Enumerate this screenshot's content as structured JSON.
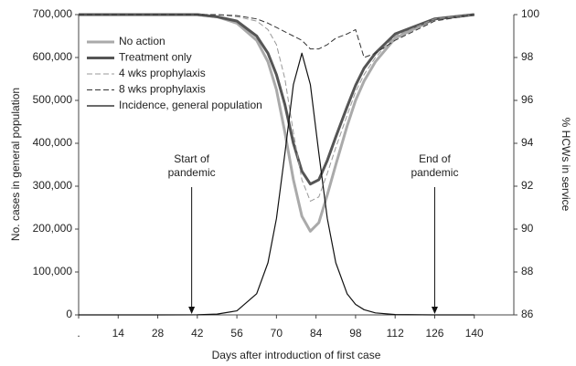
{
  "chart_data": {
    "type": "line",
    "x_label": "Days after introduction of first case",
    "y_label": "No. cases in general population",
    "y2_label": "% HCWs in service",
    "x": [
      0,
      14,
      28,
      42,
      49,
      56,
      63,
      67,
      70,
      73,
      76,
      79,
      82,
      85,
      88,
      91,
      95,
      98,
      101,
      105,
      112,
      126,
      140
    ],
    "xlim": [
      0,
      154
    ],
    "xticks": [
      {
        "value": 0,
        "label": "."
      },
      14,
      28,
      42,
      56,
      70,
      84,
      98,
      112,
      126,
      140
    ],
    "ylim": [
      0,
      700000
    ],
    "yticks": [
      0,
      {
        "value": 100000,
        "label": "100,000"
      },
      {
        "value": 200000,
        "label": "200,000"
      },
      {
        "value": 300000,
        "label": "300,000"
      },
      {
        "value": 400000,
        "label": "400,000"
      },
      {
        "value": 500000,
        "label": "500,000"
      },
      {
        "value": 600000,
        "label": "600,000"
      },
      {
        "value": 700000,
        "label": "700,000"
      }
    ],
    "y2lim": [
      86,
      100
    ],
    "y2ticks": [
      86,
      88,
      90,
      92,
      94,
      96,
      98,
      100
    ],
    "legend": "upper left",
    "series": [
      {
        "name": "No action",
        "color": "#aaaaaa",
        "line_width": 3,
        "dashed": false,
        "axis": "y2",
        "values": [
          100,
          100,
          100,
          100,
          99.9,
          99.6,
          98.8,
          97.8,
          96.5,
          94.5,
          92.3,
          90.6,
          89.9,
          90.3,
          91.6,
          93.0,
          94.8,
          96.0,
          96.9,
          97.8,
          98.9,
          99.8,
          100
        ]
      },
      {
        "name": "Treatment only",
        "color": "#555555",
        "line_width": 3,
        "dashed": false,
        "axis": "y2",
        "values": [
          100,
          100,
          100,
          100,
          99.9,
          99.7,
          99.0,
          98.2,
          97.2,
          95.8,
          94.0,
          92.7,
          92.1,
          92.3,
          93.2,
          94.3,
          95.7,
          96.7,
          97.5,
          98.2,
          99.1,
          99.8,
          100
        ]
      },
      {
        "name": "4 wks prophylaxis",
        "color": "#999999",
        "line_width": 1,
        "dashed": true,
        "axis": "y2",
        "values": [
          100,
          100,
          100,
          100,
          100,
          99.9,
          99.7,
          99.3,
          98.6,
          97.0,
          94.5,
          92.3,
          91.3,
          91.5,
          92.6,
          93.8,
          95.3,
          96.4,
          97.2,
          98.0,
          99.0,
          99.8,
          100
        ]
      },
      {
        "name": "8 wks prophylaxis",
        "color": "#333333",
        "line_width": 1,
        "dashed": true,
        "axis": "y2",
        "values": [
          100,
          100,
          100,
          100,
          100,
          99.95,
          99.8,
          99.6,
          99.4,
          99.2,
          99.0,
          98.8,
          98.4,
          98.4,
          98.6,
          98.9,
          99.1,
          99.3,
          98.0,
          98.2,
          98.8,
          99.7,
          100
        ]
      },
      {
        "name": "Incidence, general population",
        "color": "#111111",
        "line_width": 1.2,
        "dashed": false,
        "values": [
          0,
          0,
          0,
          300,
          1800,
          9500,
          49300,
          121500,
          224600,
          377000,
          537000,
          610000,
          537000,
          377000,
          224600,
          121500,
          49300,
          24500,
          12100,
          4660,
          850,
          0,
          0
        ]
      }
    ],
    "annotations": [
      {
        "text": [
          "Start of",
          "pandemic"
        ],
        "x": 40
      },
      {
        "text": [
          "End of",
          "pandemic"
        ],
        "x": 126
      }
    ]
  }
}
